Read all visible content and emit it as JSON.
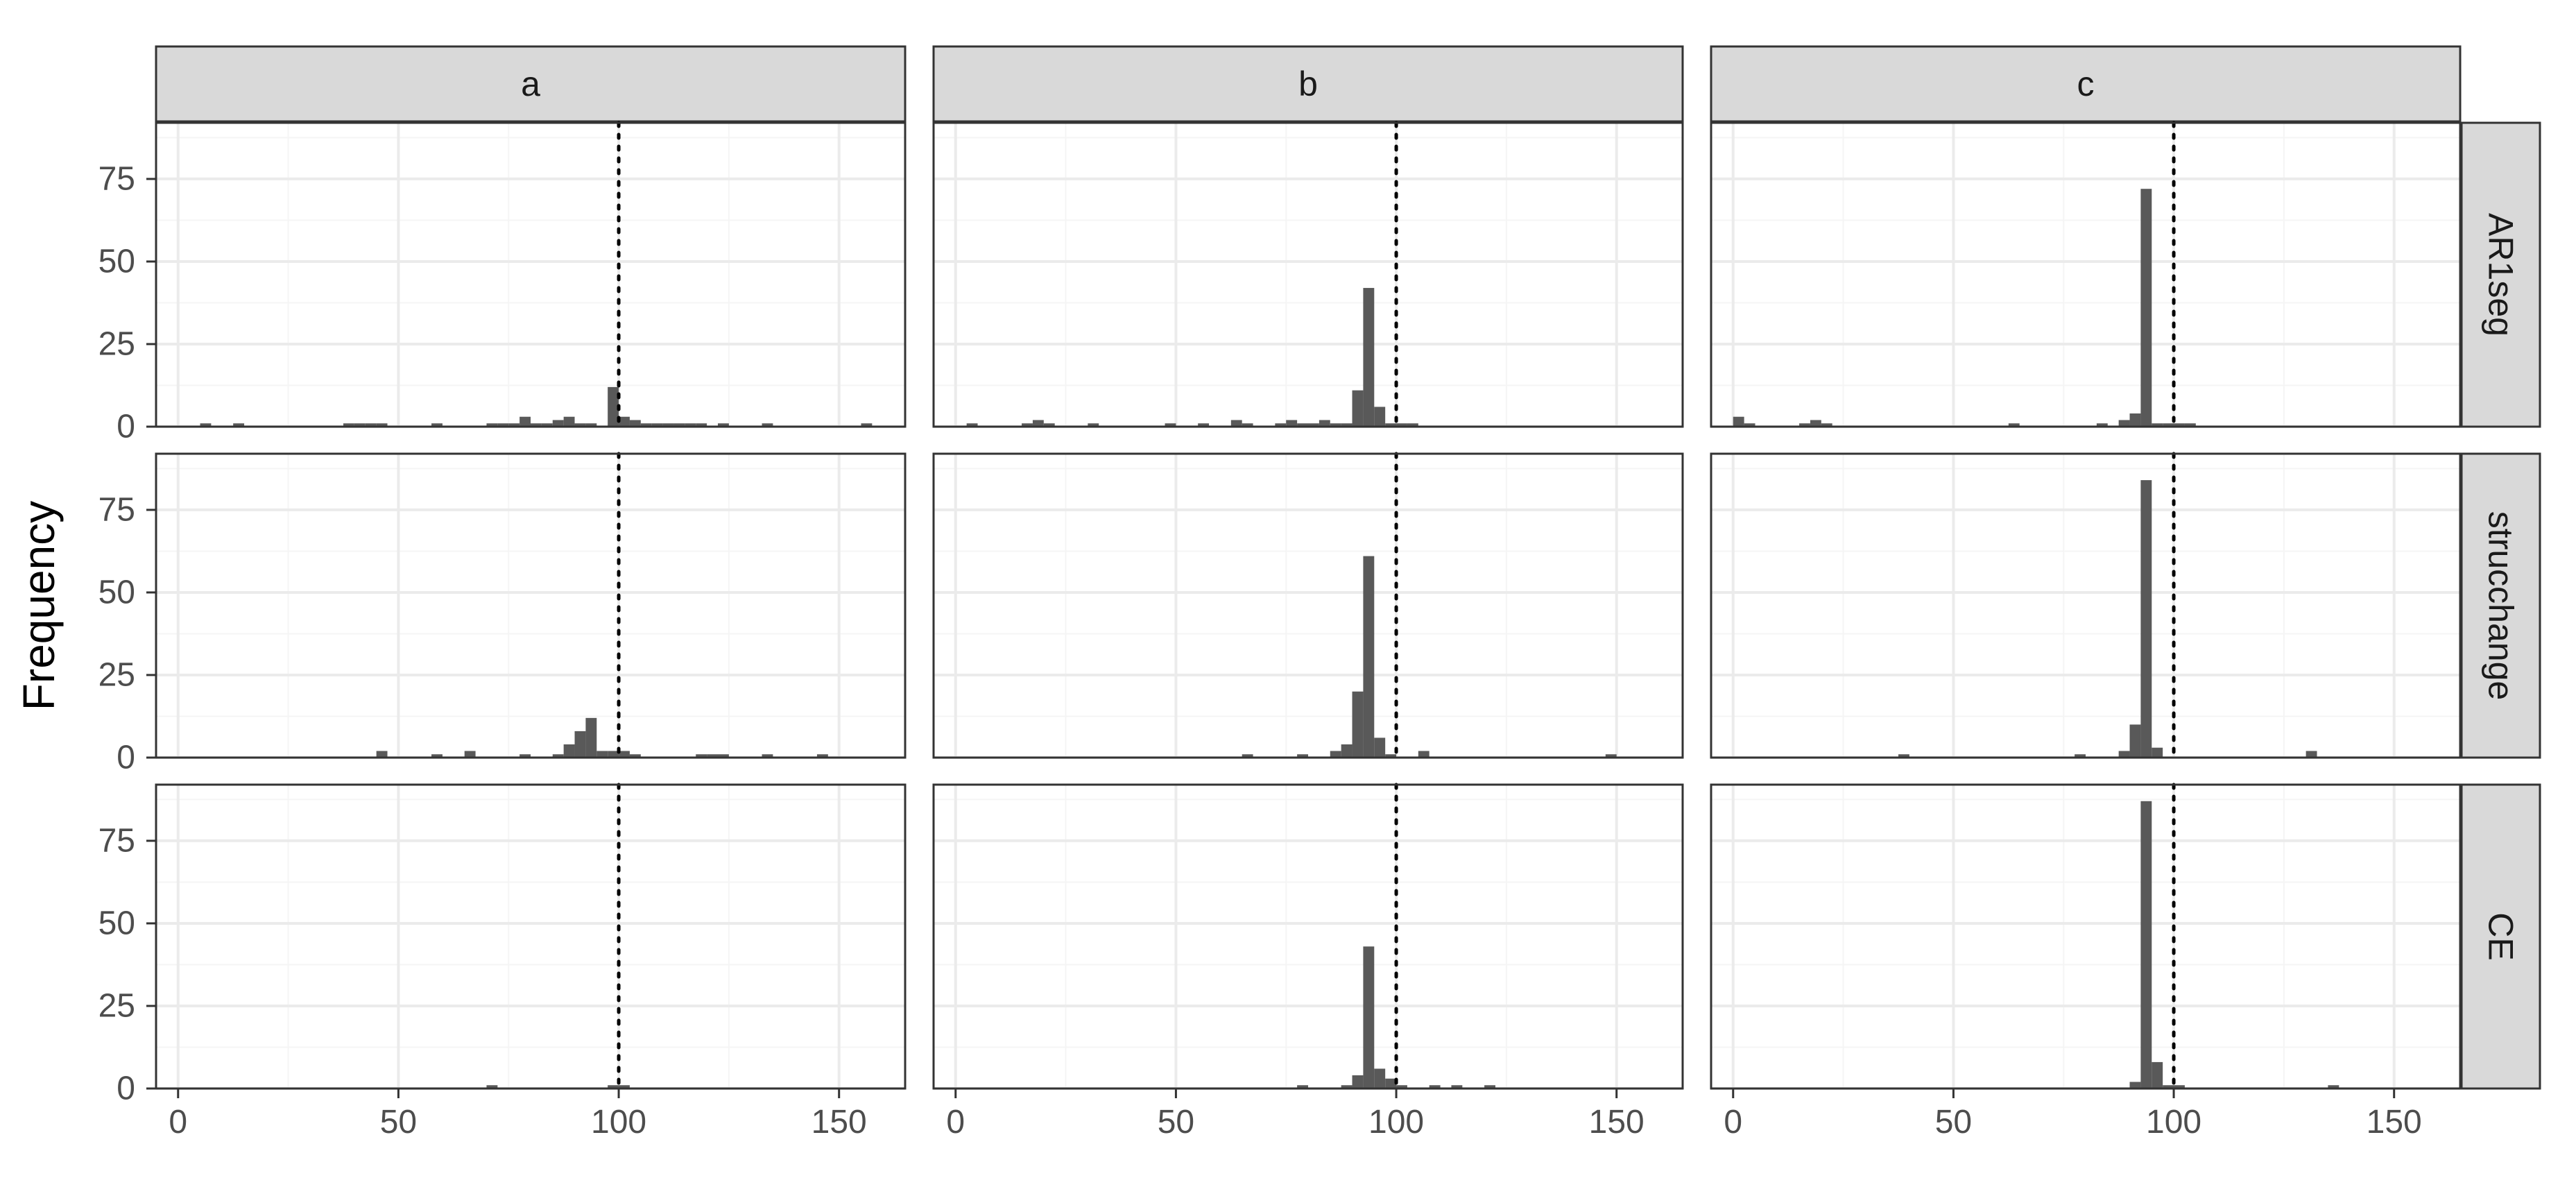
{
  "chart_data": {
    "type": "bar",
    "ylabel": "Frequency",
    "xlim": [
      -5,
      165
    ],
    "ylim": [
      0,
      92
    ],
    "x_ticks": [
      0,
      50,
      100,
      150
    ],
    "y_ticks": [
      0,
      25,
      50,
      75
    ],
    "bin_width": 2.5,
    "reference_line_x": 100,
    "grid": true,
    "col_labels": [
      "a",
      "b",
      "c"
    ],
    "row_labels": [
      "AR1seg",
      "strucchange",
      "CE"
    ],
    "panels": [
      {
        "row": "AR1seg",
        "col": "a",
        "bins": [
          [
            5,
            7.5,
            1
          ],
          [
            12.5,
            15,
            1
          ],
          [
            37.5,
            40,
            1
          ],
          [
            40,
            42.5,
            1
          ],
          [
            42.5,
            45,
            1
          ],
          [
            45,
            47.5,
            1
          ],
          [
            57.5,
            60,
            1
          ],
          [
            70,
            72.5,
            1
          ],
          [
            72.5,
            75,
            1
          ],
          [
            75,
            77.5,
            1
          ],
          [
            77.5,
            80,
            3
          ],
          [
            80,
            82.5,
            1
          ],
          [
            82.5,
            85,
            1
          ],
          [
            85,
            87.5,
            2
          ],
          [
            87.5,
            90,
            3
          ],
          [
            90,
            92.5,
            1
          ],
          [
            92.5,
            95,
            1
          ],
          [
            97.5,
            100,
            12
          ],
          [
            100,
            102.5,
            3
          ],
          [
            102.5,
            105,
            2
          ],
          [
            105,
            107.5,
            1
          ],
          [
            107.5,
            110,
            1
          ],
          [
            110,
            112.5,
            1
          ],
          [
            112.5,
            115,
            1
          ],
          [
            115,
            117.5,
            1
          ],
          [
            117.5,
            120,
            1
          ],
          [
            122.5,
            125,
            1
          ],
          [
            132.5,
            135,
            1
          ],
          [
            155,
            157.5,
            1
          ]
        ]
      },
      {
        "row": "AR1seg",
        "col": "b",
        "bins": [
          [
            2.5,
            5,
            1
          ],
          [
            15,
            17.5,
            1
          ],
          [
            17.5,
            20,
            2
          ],
          [
            20,
            22.5,
            1
          ],
          [
            30,
            32.5,
            1
          ],
          [
            47.5,
            50,
            1
          ],
          [
            55,
            57.5,
            1
          ],
          [
            62.5,
            65,
            2
          ],
          [
            65,
            67.5,
            1
          ],
          [
            72.5,
            75,
            1
          ],
          [
            75,
            77.5,
            2
          ],
          [
            77.5,
            80,
            1
          ],
          [
            80,
            82.5,
            1
          ],
          [
            82.5,
            85,
            2
          ],
          [
            85,
            87.5,
            1
          ],
          [
            87.5,
            90,
            1
          ],
          [
            90,
            92.5,
            11
          ],
          [
            92.5,
            95,
            42
          ],
          [
            95,
            97.5,
            6
          ],
          [
            97.5,
            100,
            1
          ],
          [
            100,
            102.5,
            1
          ],
          [
            102.5,
            105,
            1
          ]
        ]
      },
      {
        "row": "AR1seg",
        "col": "c",
        "bins": [
          [
            0,
            2.5,
            3
          ],
          [
            2.5,
            5,
            1
          ],
          [
            15,
            17.5,
            1
          ],
          [
            17.5,
            20,
            2
          ],
          [
            20,
            22.5,
            1
          ],
          [
            62.5,
            65,
            1
          ],
          [
            82.5,
            85,
            1
          ],
          [
            87.5,
            90,
            2
          ],
          [
            90,
            92.5,
            4
          ],
          [
            92.5,
            95,
            72
          ],
          [
            95,
            97.5,
            1
          ],
          [
            97.5,
            100,
            1
          ],
          [
            100,
            102.5,
            1
          ],
          [
            102.5,
            105,
            1
          ]
        ]
      },
      {
        "row": "strucchange",
        "col": "a",
        "bins": [
          [
            45,
            47.5,
            2
          ],
          [
            57.5,
            60,
            1
          ],
          [
            65,
            67.5,
            2
          ],
          [
            77.5,
            80,
            1
          ],
          [
            85,
            87.5,
            1
          ],
          [
            87.5,
            90,
            4
          ],
          [
            90,
            92.5,
            8
          ],
          [
            92.5,
            95,
            12
          ],
          [
            95,
            97.5,
            2
          ],
          [
            97.5,
            100,
            2
          ],
          [
            100,
            102.5,
            2
          ],
          [
            102.5,
            105,
            1
          ],
          [
            117.5,
            120,
            1
          ],
          [
            120,
            122.5,
            1
          ],
          [
            122.5,
            125,
            1
          ],
          [
            132.5,
            135,
            1
          ],
          [
            145,
            147.5,
            1
          ]
        ]
      },
      {
        "row": "strucchange",
        "col": "b",
        "bins": [
          [
            65,
            67.5,
            1
          ],
          [
            77.5,
            80,
            1
          ],
          [
            85,
            87.5,
            2
          ],
          [
            87.5,
            90,
            4
          ],
          [
            90,
            92.5,
            20
          ],
          [
            92.5,
            95,
            61
          ],
          [
            95,
            97.5,
            6
          ],
          [
            97.5,
            100,
            1
          ],
          [
            105,
            107.5,
            2
          ],
          [
            147.5,
            150,
            1
          ]
        ]
      },
      {
        "row": "strucchange",
        "col": "c",
        "bins": [
          [
            37.5,
            40,
            1
          ],
          [
            77.5,
            80,
            1
          ],
          [
            87.5,
            90,
            2
          ],
          [
            90,
            92.5,
            10
          ],
          [
            92.5,
            95,
            84
          ],
          [
            95,
            97.5,
            3
          ],
          [
            130,
            132.5,
            2
          ]
        ]
      },
      {
        "row": "CE",
        "col": "a",
        "bins": [
          [
            70,
            72.5,
            1
          ],
          [
            97.5,
            100,
            1
          ],
          [
            100,
            102.5,
            1
          ]
        ]
      },
      {
        "row": "CE",
        "col": "b",
        "bins": [
          [
            77.5,
            80,
            1
          ],
          [
            87.5,
            90,
            1
          ],
          [
            90,
            92.5,
            4
          ],
          [
            92.5,
            95,
            43
          ],
          [
            95,
            97.5,
            6
          ],
          [
            97.5,
            100,
            3
          ],
          [
            100,
            102.5,
            1
          ],
          [
            107.5,
            110,
            1
          ],
          [
            112.5,
            115,
            1
          ],
          [
            120,
            122.5,
            1
          ]
        ]
      },
      {
        "row": "CE",
        "col": "c",
        "bins": [
          [
            90,
            92.5,
            2
          ],
          [
            92.5,
            95,
            87
          ],
          [
            95,
            97.5,
            8
          ],
          [
            97.5,
            100,
            1
          ],
          [
            100,
            102.5,
            1
          ],
          [
            135,
            137.5,
            1
          ]
        ]
      }
    ]
  },
  "style": {
    "bar_fill": "#595959",
    "panel_border": "#333333",
    "strip_fill": "#d9d9d9",
    "grid_major": "#ebebeb",
    "grid_minor": "#f5f5f5",
    "text": "#4d4d4d",
    "reference_line": "#000000"
  }
}
